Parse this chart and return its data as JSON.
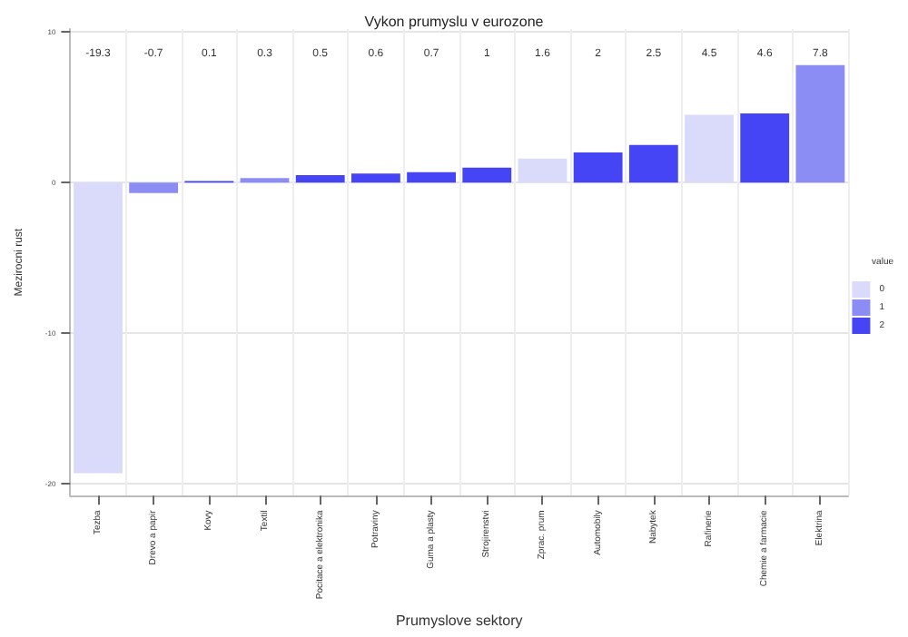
{
  "chart_data": {
    "type": "bar",
    "title": "Vykon prumyslu v eurozone",
    "xlabel": "Prumyslove sektory",
    "ylabel": "Mezirocni rust",
    "legend_title": "value",
    "categories": [
      "Tezba",
      "Drevo a papir",
      "Kovy",
      "Textil",
      "Pocitace a elektronika",
      "Potraviny",
      "Guma a plasty",
      "Strojirenstvi",
      "Zprac. prum",
      "Automobily",
      "Nabytek",
      "Rafinerie",
      "Chemie a farmacie",
      "Elektrina"
    ],
    "series": [
      {
        "name": "0",
        "color": "#dadafa",
        "values": [
          -19.3,
          null,
          null,
          null,
          null,
          null,
          null,
          null,
          1.6,
          null,
          null,
          4.5,
          null,
          null
        ]
      },
      {
        "name": "1",
        "color": "#8c8cf5",
        "values": [
          null,
          -0.7,
          null,
          0.3,
          null,
          null,
          null,
          null,
          null,
          null,
          null,
          null,
          null,
          7.8
        ]
      },
      {
        "name": "2",
        "color": "#4545f5",
        "values": [
          null,
          null,
          0.1,
          null,
          0.5,
          0.6,
          0.7,
          1,
          null,
          2,
          2.5,
          null,
          4.6,
          null
        ]
      }
    ],
    "stacked": true,
    "annotations": [
      "-19.3",
      "-0.7",
      "0.1",
      "0.3",
      "0.5",
      "0.6",
      "0.7",
      "1",
      "1.6",
      "2",
      "2.5",
      "4.5",
      "4.6",
      "7.8"
    ],
    "ylim": [
      -20.8,
      10.2
    ],
    "yticks": [
      -20,
      -10,
      0,
      10
    ],
    "grid": true,
    "legend": "right"
  }
}
